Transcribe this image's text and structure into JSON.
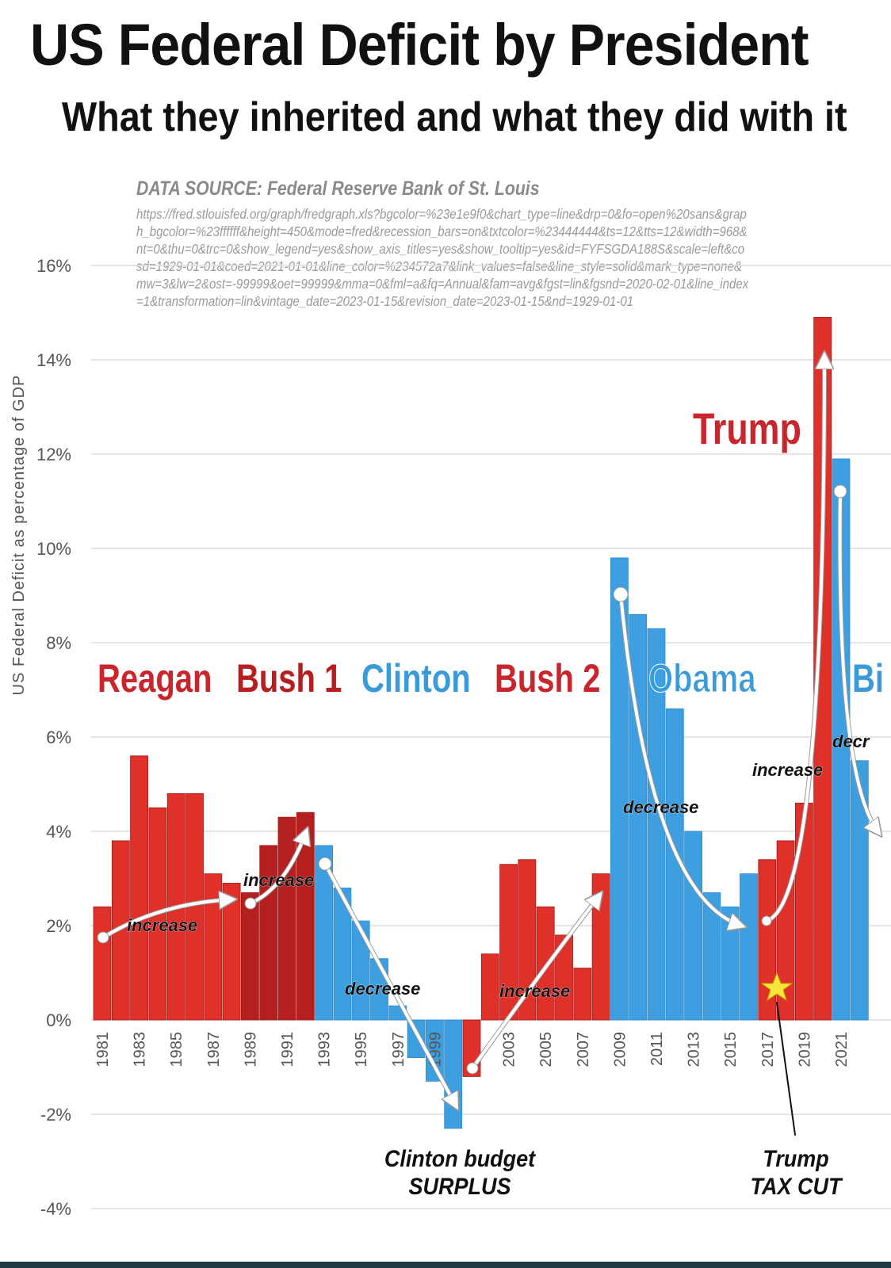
{
  "header": {
    "title": "US Federal Deficit by President",
    "subtitle": "What they inherited and what they did with it"
  },
  "source": {
    "label": "DATA SOURCE: Federal Reserve Bank of St. Louis",
    "url": "https://fred.stlouisfed.org/graph/fredgraph.xls?bgcolor=%23e1e9f0&chart_type=line&drp=0&fo=open%20sans&graph_bgcolor=%23ffffff&height=450&mode=fred&recession_bars=on&txtcolor=%23444444&ts=12&tts=12&width=968&nt=0&thu=0&trc=0&show_legend=yes&show_axis_titles=yes&show_tooltip=yes&id=FYFSGDA188S&scale=left&cosd=1929-01-01&coed=2021-01-01&line_color=%234572a7&link_values=false&line_style=solid&mark_type=none&mw=3&lw=2&ost=-99999&oet=99999&mma=0&fml=a&fq=Annual&fam=avg&fgst=lin&fgsnd=2020-02-01&line_index=1&transformation=lin&vintage_date=2023-01-15&revision_date=2023-01-15&nd=1929-01-01"
  },
  "colors": {
    "republican": "#e0302a",
    "republican_dark": "#b51f1f",
    "democrat": "#3d9fe0",
    "republican_label": "#c8252c",
    "democrat_label": "#3b9bd8"
  },
  "presidents": [
    {
      "name": "Reagan",
      "party": "republican"
    },
    {
      "name": "Bush 1",
      "party": "republican_dark"
    },
    {
      "name": "Clinton",
      "party": "democrat"
    },
    {
      "name": "Bush 2",
      "party": "republican"
    },
    {
      "name": "Obama",
      "party": "democrat"
    },
    {
      "name": "Trump",
      "party": "republican"
    },
    {
      "name": "Bi",
      "party": "democrat"
    }
  ],
  "annotations": {
    "arrows": [
      "increase",
      "increase",
      "decrease",
      "increase",
      "decrease",
      "increase",
      "decr"
    ],
    "surplus_line1": "Clinton budget",
    "surplus_line2": "SURPLUS",
    "taxcut_line1": "Trump",
    "taxcut_line2": "TAX CUT"
  },
  "chart_data": {
    "type": "bar",
    "title": "US Federal Deficit by President",
    "subtitle": "What they inherited and what they did with it",
    "xlabel": "",
    "ylabel": "US Federal Deficit as percentage of GDP",
    "ylim": [
      -4,
      16
    ],
    "yticks": [
      16,
      14,
      12,
      10,
      8,
      6,
      4,
      2,
      0,
      -2,
      -4
    ],
    "ytick_labels": [
      "16%",
      "14%",
      "12%",
      "10%",
      "8%",
      "6%",
      "4%",
      "2%",
      "0%",
      "-2%",
      "-4%"
    ],
    "grid": true,
    "categories": [
      1981,
      1982,
      1983,
      1984,
      1985,
      1986,
      1987,
      1988,
      1989,
      1990,
      1991,
      1992,
      1993,
      1994,
      1995,
      1996,
      1997,
      1998,
      1999,
      2000,
      2001,
      2002,
      2003,
      2004,
      2005,
      2006,
      2007,
      2008,
      2009,
      2010,
      2011,
      2012,
      2013,
      2014,
      2015,
      2016,
      2017,
      2018,
      2019,
      2020,
      2021,
      2022
    ],
    "xtick_labels": [
      "1981",
      "1983",
      "1985",
      "1987",
      "1989",
      "1991",
      "1993",
      "1995",
      "1997",
      "1999",
      "2003",
      "2005",
      "2007",
      "2009",
      "2011",
      "2013",
      "2015",
      "2017",
      "2019",
      "2021"
    ],
    "values": [
      2.4,
      3.8,
      5.6,
      4.5,
      4.8,
      4.8,
      3.1,
      2.9,
      2.7,
      3.7,
      4.3,
      4.4,
      3.7,
      2.8,
      2.1,
      1.3,
      0.3,
      -0.8,
      -1.3,
      -2.3,
      -1.2,
      1.4,
      3.3,
      3.4,
      2.4,
      1.8,
      1.1,
      3.1,
      9.8,
      8.6,
      8.3,
      6.6,
      4.0,
      2.7,
      2.4,
      3.1,
      3.4,
      3.8,
      4.6,
      14.9,
      11.9,
      5.5
    ],
    "president": [
      "Reagan",
      "Reagan",
      "Reagan",
      "Reagan",
      "Reagan",
      "Reagan",
      "Reagan",
      "Reagan",
      "Bush 1",
      "Bush 1",
      "Bush 1",
      "Bush 1",
      "Clinton",
      "Clinton",
      "Clinton",
      "Clinton",
      "Clinton",
      "Clinton",
      "Clinton",
      "Clinton",
      "Bush 2",
      "Bush 2",
      "Bush 2",
      "Bush 2",
      "Bush 2",
      "Bush 2",
      "Bush 2",
      "Bush 2",
      "Obama",
      "Obama",
      "Obama",
      "Obama",
      "Obama",
      "Obama",
      "Obama",
      "Obama",
      "Trump",
      "Trump",
      "Trump",
      "Trump",
      "Biden",
      "Biden"
    ]
  }
}
